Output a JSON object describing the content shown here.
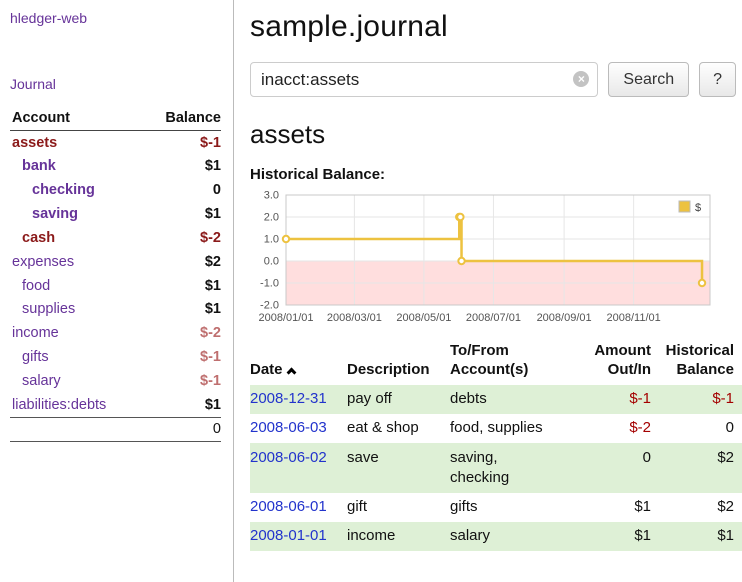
{
  "colors": {
    "purple": "#663399",
    "dark_red": "#8b1a1a",
    "muted_red": "#bf6f6f",
    "table_red": "#a40000",
    "link_blue": "#2233cc",
    "row_green": "#def0d6",
    "chart_line": "#edc240",
    "chart_negative_fill": "#ffdede"
  },
  "sidebar": {
    "app_title": "hledger-web",
    "journal_link": "Journal",
    "accounts_table": {
      "headers": [
        "Account",
        "Balance"
      ],
      "rows": [
        {
          "name": "assets",
          "indent": 0,
          "balance": "$-1",
          "name_color": "darkred",
          "balance_color": "darkred",
          "bold": true
        },
        {
          "name": "bank",
          "indent": 1,
          "balance": "$1",
          "name_color": "purple",
          "balance_color": "black",
          "bold": true
        },
        {
          "name": "checking",
          "indent": 2,
          "balance": "0",
          "name_color": "purple",
          "balance_color": "black",
          "bold": true
        },
        {
          "name": "saving",
          "indent": 2,
          "balance": "$1",
          "name_color": "purple",
          "balance_color": "black",
          "bold": true
        },
        {
          "name": "cash",
          "indent": 1,
          "balance": "$-2",
          "name_color": "darkred",
          "balance_color": "darkred",
          "bold": true
        },
        {
          "name": "expenses",
          "indent": 0,
          "balance": "$2",
          "name_color": "purple",
          "balance_color": "black",
          "bold": false
        },
        {
          "name": "food",
          "indent": 1,
          "balance": "$1",
          "name_color": "purple",
          "balance_color": "black",
          "bold": false
        },
        {
          "name": "supplies",
          "indent": 1,
          "balance": "$1",
          "name_color": "purple",
          "balance_color": "black",
          "bold": false
        },
        {
          "name": "income",
          "indent": 0,
          "balance": "$-2",
          "name_color": "purple",
          "balance_color": "mutedred",
          "bold": false
        },
        {
          "name": "gifts",
          "indent": 1,
          "balance": "$-1",
          "name_color": "purple",
          "balance_color": "mutedred",
          "bold": false
        },
        {
          "name": "salary",
          "indent": 1,
          "balance": "$-1",
          "name_color": "purple",
          "balance_color": "mutedred",
          "bold": false
        },
        {
          "name": "liabilities:debts",
          "indent": 0,
          "balance": "$1",
          "name_color": "purple",
          "balance_color": "black",
          "bold": false
        }
      ],
      "total": "0"
    }
  },
  "header": {
    "title": "sample.journal"
  },
  "search": {
    "value": "inacct:assets",
    "clear_icon": "×",
    "button_label": "Search",
    "help_label": "?"
  },
  "main": {
    "account_heading": "assets",
    "chart_label": "Historical Balance:"
  },
  "chart_data": {
    "type": "line",
    "step": true,
    "title": "Historical Balance",
    "legend": [
      {
        "label": "$",
        "color": "#edc240"
      }
    ],
    "legend_position": "top-right",
    "grid": true,
    "ylim": [
      -2.0,
      3.0
    ],
    "yticks": [
      3.0,
      2.0,
      1.0,
      0.0,
      -1.0,
      -2.0
    ],
    "xlim": [
      0,
      372
    ],
    "xticks": [
      {
        "x": 0,
        "label": "2008/01/01"
      },
      {
        "x": 60,
        "label": "2008/03/01"
      },
      {
        "x": 121,
        "label": "2008/05/01"
      },
      {
        "x": 182,
        "label": "2008/07/01"
      },
      {
        "x": 244,
        "label": "2008/09/01"
      },
      {
        "x": 305,
        "label": "2008/11/01"
      }
    ],
    "negative_region": {
      "from": 0,
      "to": -2
    },
    "series": [
      {
        "name": "$",
        "points": [
          {
            "x": 0,
            "y": 1,
            "date": "2008-01-01"
          },
          {
            "x": 152,
            "y": 2,
            "date": "2008-06-01"
          },
          {
            "x": 153,
            "y": 2,
            "date": "2008-06-02"
          },
          {
            "x": 154,
            "y": 0,
            "date": "2008-06-03"
          },
          {
            "x": 365,
            "y": -1,
            "date": "2008-12-31"
          }
        ]
      }
    ]
  },
  "transactions": {
    "headers": {
      "date": "Date",
      "description": "Description",
      "accounts": "To/From Account(s)",
      "amount": "Amount Out/In",
      "balance": "Historical Balance"
    },
    "rows": [
      {
        "date": "2008-12-31",
        "description": "pay off",
        "accounts": "debts",
        "amount": "$-1",
        "balance": "$-1",
        "amount_negative": true,
        "balance_negative": true,
        "highlight": true
      },
      {
        "date": "2008-06-03",
        "description": "eat & shop",
        "accounts": "food, supplies",
        "amount": "$-2",
        "balance": "0",
        "amount_negative": true,
        "balance_negative": false,
        "highlight": false
      },
      {
        "date": "2008-06-02",
        "description": "save",
        "accounts": "saving,\nchecking",
        "amount": "0",
        "balance": "$2",
        "amount_negative": false,
        "balance_negative": false,
        "highlight": true
      },
      {
        "date": "2008-06-01",
        "description": "gift",
        "accounts": "gifts",
        "amount": "$1",
        "balance": "$2",
        "amount_negative": false,
        "balance_negative": false,
        "highlight": false
      },
      {
        "date": "2008-01-01",
        "description": "income",
        "accounts": "salary",
        "amount": "$1",
        "balance": "$1",
        "amount_negative": false,
        "balance_negative": false,
        "highlight": true
      }
    ]
  }
}
